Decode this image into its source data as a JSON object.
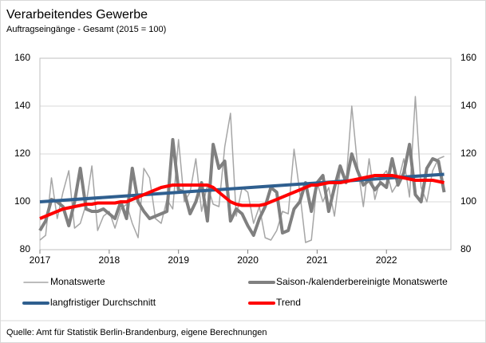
{
  "chart_data": {
    "type": "line",
    "title": "Verarbeitendes Gewerbe",
    "subtitle": "Auftragseingänge  - Gesamt (2015 = 100)",
    "source": "Quelle: Amt für Statistik Berlin-Brandenburg, eigene Berechnungen",
    "x": [
      2017,
      2017.083,
      2017.167,
      2017.25,
      2017.333,
      2017.417,
      2017.5,
      2017.583,
      2017.667,
      2017.75,
      2017.833,
      2017.917,
      2018,
      2018.083,
      2018.167,
      2018.25,
      2018.333,
      2018.417,
      2018.5,
      2018.583,
      2018.667,
      2018.75,
      2018.833,
      2018.917,
      2019,
      2019.083,
      2019.167,
      2019.25,
      2019.333,
      2019.417,
      2019.5,
      2019.583,
      2019.667,
      2019.75,
      2019.833,
      2019.917,
      2020,
      2020.083,
      2020.167,
      2020.25,
      2020.333,
      2020.417,
      2020.5,
      2020.583,
      2020.667,
      2020.75,
      2020.833,
      2020.917,
      2021,
      2021.083,
      2021.167,
      2021.25,
      2021.333,
      2021.417,
      2021.5,
      2021.583,
      2021.667,
      2021.75,
      2021.833,
      2021.917,
      2022,
      2022.083,
      2022.167,
      2022.25,
      2022.333,
      2022.417,
      2022.5,
      2022.583,
      2022.667,
      2022.75,
      2022.833
    ],
    "xlim": [
      2017,
      2022.93
    ],
    "xticks": [
      2017,
      2018,
      2019,
      2020,
      2021,
      2022
    ],
    "ylim": [
      80,
      160
    ],
    "yticks": [
      80,
      100,
      120,
      140,
      160
    ],
    "y2lim": [
      80,
      160
    ],
    "y2ticks": [
      80,
      100,
      120,
      140,
      160
    ],
    "grid": true,
    "series": [
      {
        "name": "Monatswerte",
        "color": "#a6a6a6",
        "width": 1.5,
        "values": [
          84,
          86,
          110,
          93,
          104,
          113,
          89,
          91,
          99,
          115,
          88,
          94,
          96,
          89,
          97,
          99,
          91,
          85,
          114,
          110,
          93,
          91,
          101,
          97,
          126,
          100,
          104,
          118,
          96,
          107,
          99,
          98,
          123,
          137,
          94,
          106,
          104,
          91,
          98,
          85,
          84,
          88,
          96,
          95,
          122,
          104,
          83,
          84,
          108,
          100,
          106,
          94,
          113,
          108,
          140,
          115,
          98,
          118,
          101,
          110,
          113,
          104,
          108,
          118,
          102,
          144,
          106,
          100,
          113,
          118,
          119
        ]
      },
      {
        "name": "Saison-/kalenderbereinigte Monatswerte",
        "color": "#808080",
        "width": 4,
        "values": [
          88,
          92,
          101,
          100,
          98,
          90,
          100,
          114,
          97,
          96,
          96,
          97,
          95,
          93,
          100,
          93,
          114,
          100,
          96,
          93,
          94,
          95,
          96,
          126,
          105,
          104,
          95,
          100,
          108,
          92,
          124,
          114,
          117,
          92,
          97,
          95,
          90,
          86,
          93,
          98,
          106,
          104,
          87,
          88,
          97,
          100,
          108,
          96,
          108,
          111,
          96,
          106,
          115,
          108,
          120,
          113,
          107,
          109,
          105,
          108,
          106,
          118,
          107,
          112,
          124,
          103,
          100,
          114,
          118,
          117,
          104
        ]
      },
      {
        "name": "langfristiger Durchschnitt",
        "color": "#2f5f8f",
        "width": 4,
        "x": [
          2017,
          2022.833
        ],
        "values": [
          100,
          111.5
        ]
      },
      {
        "name": "Trend",
        "color": "#ff0000",
        "width": 4,
        "values": [
          93,
          94,
          95,
          96,
          97,
          97.5,
          98,
          98.5,
          99,
          99,
          99.5,
          99.5,
          99.5,
          99.5,
          100,
          100,
          101,
          102,
          103,
          104,
          105,
          106,
          106.5,
          107,
          107,
          107,
          107,
          107,
          107,
          107,
          106,
          104,
          102,
          100,
          99,
          98.5,
          98.5,
          98.5,
          98.5,
          99,
          100,
          101,
          102,
          103,
          104,
          105,
          106,
          107,
          107,
          107.5,
          108,
          108,
          108,
          108.5,
          109,
          109.5,
          110,
          110.5,
          111,
          111,
          111,
          111,
          110.5,
          110,
          109.5,
          109,
          109,
          109,
          109,
          108.5,
          108
        ]
      }
    ]
  }
}
